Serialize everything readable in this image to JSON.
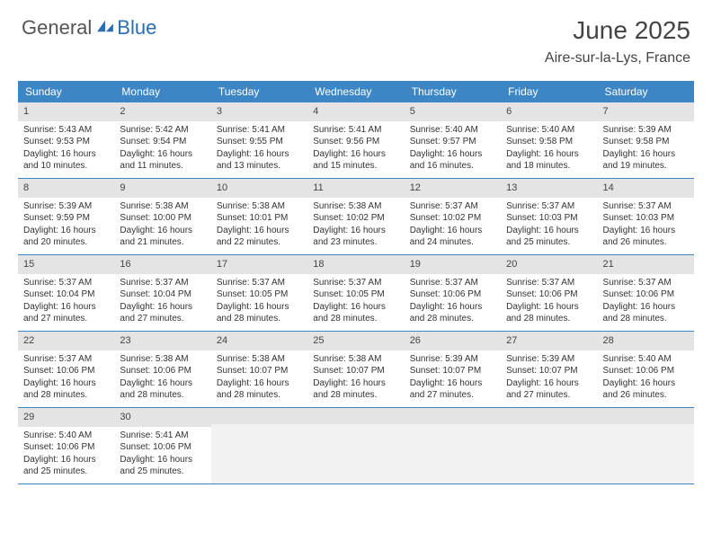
{
  "brand": {
    "part1": "General",
    "part2": "Blue"
  },
  "title": "June 2025",
  "location": "Aire-sur-la-Lys, France",
  "colors": {
    "header_bg": "#3d86c6",
    "header_text": "#ffffff",
    "daynum_bg": "#e4e4e4",
    "empty_bg": "#f2f2f2",
    "body_text": "#333333",
    "brand_gray": "#555555",
    "brand_blue": "#2a6db3",
    "row_border": "#3d86c6"
  },
  "typography": {
    "title_fontsize": 28,
    "location_fontsize": 16,
    "dayhead_fontsize": 12,
    "cell_fontsize": 10
  },
  "weekdays": [
    "Sunday",
    "Monday",
    "Tuesday",
    "Wednesday",
    "Thursday",
    "Friday",
    "Saturday"
  ],
  "weeks": [
    [
      {
        "n": "1",
        "sunrise": "5:43 AM",
        "sunset": "9:53 PM",
        "dl": "16 hours and 10 minutes."
      },
      {
        "n": "2",
        "sunrise": "5:42 AM",
        "sunset": "9:54 PM",
        "dl": "16 hours and 11 minutes."
      },
      {
        "n": "3",
        "sunrise": "5:41 AM",
        "sunset": "9:55 PM",
        "dl": "16 hours and 13 minutes."
      },
      {
        "n": "4",
        "sunrise": "5:41 AM",
        "sunset": "9:56 PM",
        "dl": "16 hours and 15 minutes."
      },
      {
        "n": "5",
        "sunrise": "5:40 AM",
        "sunset": "9:57 PM",
        "dl": "16 hours and 16 minutes."
      },
      {
        "n": "6",
        "sunrise": "5:40 AM",
        "sunset": "9:58 PM",
        "dl": "16 hours and 18 minutes."
      },
      {
        "n": "7",
        "sunrise": "5:39 AM",
        "sunset": "9:58 PM",
        "dl": "16 hours and 19 minutes."
      }
    ],
    [
      {
        "n": "8",
        "sunrise": "5:39 AM",
        "sunset": "9:59 PM",
        "dl": "16 hours and 20 minutes."
      },
      {
        "n": "9",
        "sunrise": "5:38 AM",
        "sunset": "10:00 PM",
        "dl": "16 hours and 21 minutes."
      },
      {
        "n": "10",
        "sunrise": "5:38 AM",
        "sunset": "10:01 PM",
        "dl": "16 hours and 22 minutes."
      },
      {
        "n": "11",
        "sunrise": "5:38 AM",
        "sunset": "10:02 PM",
        "dl": "16 hours and 23 minutes."
      },
      {
        "n": "12",
        "sunrise": "5:37 AM",
        "sunset": "10:02 PM",
        "dl": "16 hours and 24 minutes."
      },
      {
        "n": "13",
        "sunrise": "5:37 AM",
        "sunset": "10:03 PM",
        "dl": "16 hours and 25 minutes."
      },
      {
        "n": "14",
        "sunrise": "5:37 AM",
        "sunset": "10:03 PM",
        "dl": "16 hours and 26 minutes."
      }
    ],
    [
      {
        "n": "15",
        "sunrise": "5:37 AM",
        "sunset": "10:04 PM",
        "dl": "16 hours and 27 minutes."
      },
      {
        "n": "16",
        "sunrise": "5:37 AM",
        "sunset": "10:04 PM",
        "dl": "16 hours and 27 minutes."
      },
      {
        "n": "17",
        "sunrise": "5:37 AM",
        "sunset": "10:05 PM",
        "dl": "16 hours and 28 minutes."
      },
      {
        "n": "18",
        "sunrise": "5:37 AM",
        "sunset": "10:05 PM",
        "dl": "16 hours and 28 minutes."
      },
      {
        "n": "19",
        "sunrise": "5:37 AM",
        "sunset": "10:06 PM",
        "dl": "16 hours and 28 minutes."
      },
      {
        "n": "20",
        "sunrise": "5:37 AM",
        "sunset": "10:06 PM",
        "dl": "16 hours and 28 minutes."
      },
      {
        "n": "21",
        "sunrise": "5:37 AM",
        "sunset": "10:06 PM",
        "dl": "16 hours and 28 minutes."
      }
    ],
    [
      {
        "n": "22",
        "sunrise": "5:37 AM",
        "sunset": "10:06 PM",
        "dl": "16 hours and 28 minutes."
      },
      {
        "n": "23",
        "sunrise": "5:38 AM",
        "sunset": "10:06 PM",
        "dl": "16 hours and 28 minutes."
      },
      {
        "n": "24",
        "sunrise": "5:38 AM",
        "sunset": "10:07 PM",
        "dl": "16 hours and 28 minutes."
      },
      {
        "n": "25",
        "sunrise": "5:38 AM",
        "sunset": "10:07 PM",
        "dl": "16 hours and 28 minutes."
      },
      {
        "n": "26",
        "sunrise": "5:39 AM",
        "sunset": "10:07 PM",
        "dl": "16 hours and 27 minutes."
      },
      {
        "n": "27",
        "sunrise": "5:39 AM",
        "sunset": "10:07 PM",
        "dl": "16 hours and 27 minutes."
      },
      {
        "n": "28",
        "sunrise": "5:40 AM",
        "sunset": "10:06 PM",
        "dl": "16 hours and 26 minutes."
      }
    ],
    [
      {
        "n": "29",
        "sunrise": "5:40 AM",
        "sunset": "10:06 PM",
        "dl": "16 hours and 25 minutes."
      },
      {
        "n": "30",
        "sunrise": "5:41 AM",
        "sunset": "10:06 PM",
        "dl": "16 hours and 25 minutes."
      },
      null,
      null,
      null,
      null,
      null
    ]
  ],
  "labels": {
    "sunrise_prefix": "Sunrise: ",
    "sunset_prefix": "Sunset: ",
    "daylight_prefix": "Daylight: "
  }
}
